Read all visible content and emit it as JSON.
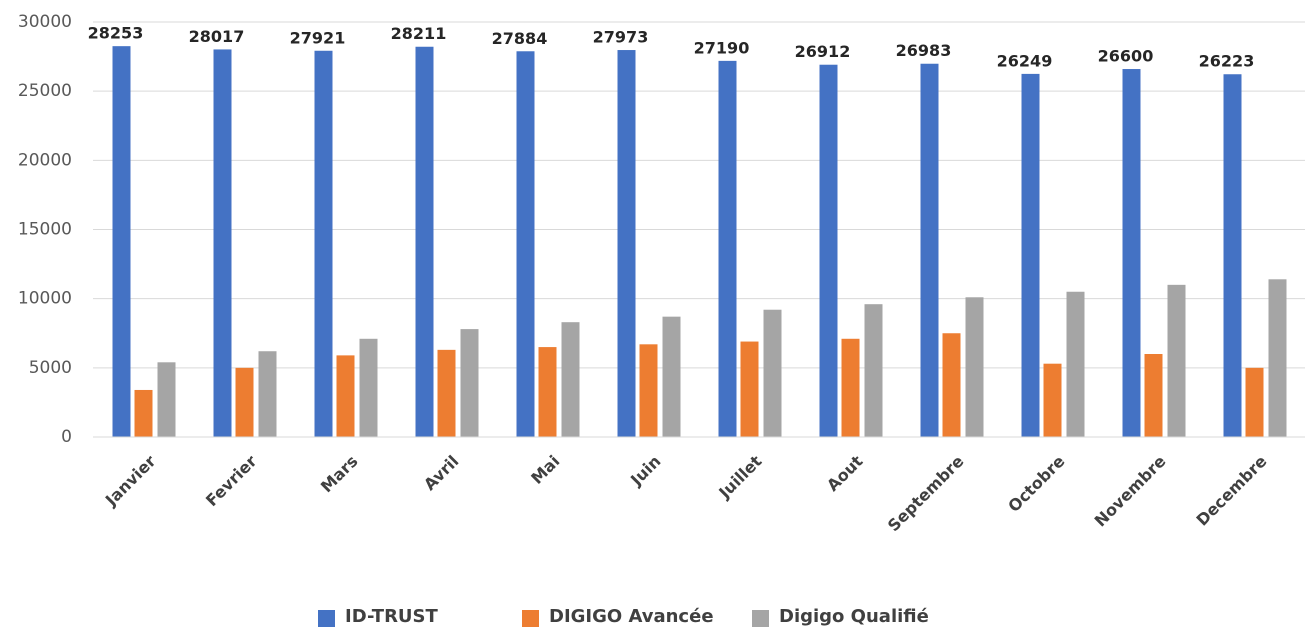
{
  "chart_data": {
    "type": "bar",
    "categories": [
      "Janvier",
      "Fevrier",
      "Mars",
      "Avril",
      "Mai",
      "Juin",
      "Juillet",
      "Aout",
      "Septembre",
      "Octobre",
      "Novembre",
      "Decembre"
    ],
    "series": [
      {
        "name": "ID-TRUST",
        "color": "#4472c4",
        "values": [
          28253,
          28017,
          27921,
          28211,
          27884,
          27973,
          27190,
          26912,
          26983,
          26249,
          26600,
          26223
        ]
      },
      {
        "name": "DIGIGO Avancée",
        "color": "#ed7d31",
        "values": [
          3400,
          5000,
          5900,
          6300,
          6500,
          6700,
          6900,
          7100,
          7500,
          5300,
          6000,
          5000
        ]
      },
      {
        "name": "Digigo Qualifié",
        "color": "#a5a5a5",
        "values": [
          5400,
          6200,
          7100,
          7800,
          8300,
          8700,
          9200,
          9600,
          10100,
          10500,
          11000,
          11400
        ]
      }
    ],
    "ylim": [
      0,
      30000
    ],
    "yticks": [
      0,
      5000,
      10000,
      15000,
      20000,
      25000,
      30000
    ],
    "grid": true,
    "legend": "bottom"
  }
}
